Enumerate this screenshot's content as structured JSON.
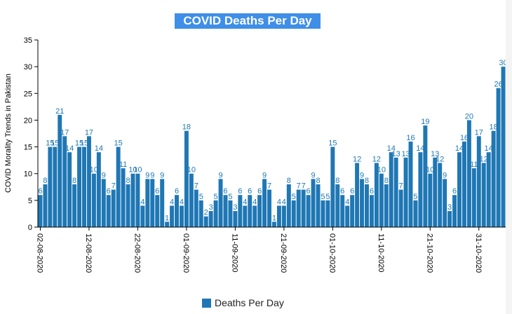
{
  "chart_data": {
    "type": "bar",
    "title": "COVID Deaths Per Day",
    "ylabel": "COVID Morality Trends in Pakistan",
    "xlabel": "",
    "ylim": [
      0,
      35
    ],
    "yticks": [
      0,
      5,
      10,
      15,
      20,
      25,
      30,
      35
    ],
    "x_start": "2020-08-02",
    "x_tick_labels": [
      {
        "date": "2020-08-02",
        "label": "02-08-2020"
      },
      {
        "date": "2020-08-12",
        "label": "12-08-2020"
      },
      {
        "date": "2020-08-22",
        "label": "22-08-2020"
      },
      {
        "date": "2020-09-01",
        "label": "01-09-2020"
      },
      {
        "date": "2020-09-11",
        "label": "11-09-2020"
      },
      {
        "date": "2020-09-21",
        "label": "21-09-2020"
      },
      {
        "date": "2020-10-01",
        "label": "01-10-2020"
      },
      {
        "date": "2020-10-11",
        "label": "11-10-2020"
      },
      {
        "date": "2020-10-21",
        "label": "21-10-2020"
      },
      {
        "date": "2020-10-31",
        "label": "31-10-2020"
      }
    ],
    "series": [
      {
        "name": "Deaths Per Day",
        "color": "#1f77b4",
        "values": [
          6,
          8,
          15,
          15,
          21,
          17,
          14,
          8,
          15,
          15,
          17,
          10,
          14,
          9,
          6,
          7,
          15,
          11,
          8,
          10,
          10,
          4,
          9,
          9,
          6,
          9,
          1,
          4,
          6,
          4,
          18,
          10,
          7,
          5,
          2,
          3,
          5,
          9,
          6,
          5,
          3,
          6,
          4,
          6,
          4,
          6,
          9,
          7,
          1,
          4,
          4,
          8,
          5,
          7,
          7,
          6,
          9,
          8,
          5,
          5,
          15,
          8,
          6,
          4,
          6,
          12,
          9,
          8,
          6,
          12,
          10,
          8,
          14,
          13,
          7,
          13,
          16,
          5,
          14,
          19,
          10,
          13,
          12,
          9,
          3,
          6,
          14,
          16,
          20,
          11,
          17,
          12,
          14,
          18,
          26,
          30
        ]
      }
    ],
    "legend": {
      "label": "Deaths Per Day",
      "position": "bottom"
    },
    "grid": false
  }
}
